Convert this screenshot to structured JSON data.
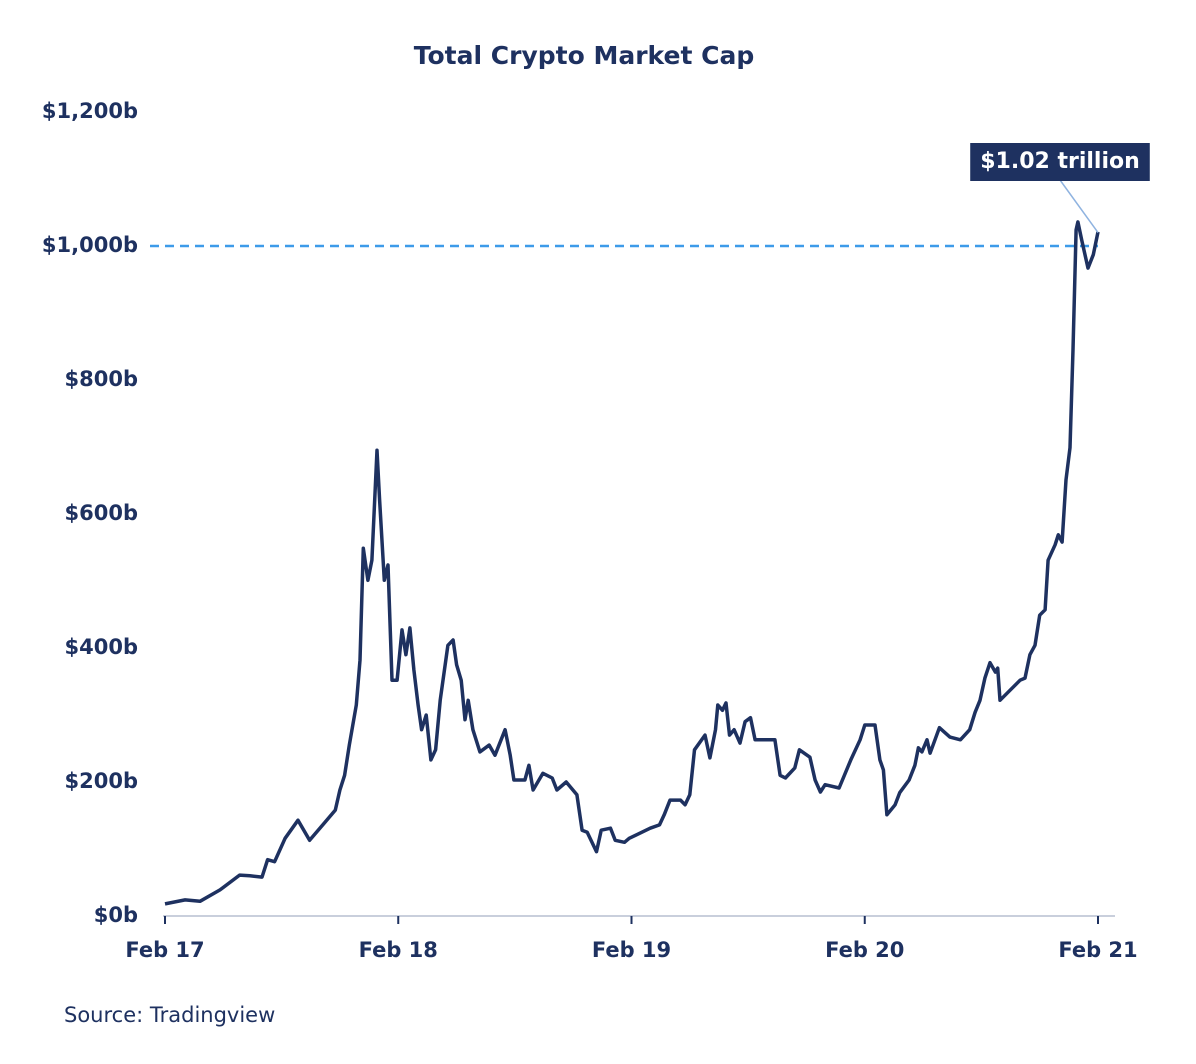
{
  "chart_data": {
    "type": "line",
    "title": "Total Crypto Market Cap",
    "source": "Source: Tradingview",
    "x": [
      2017.0,
      2017.086,
      2017.15,
      2017.236,
      2017.32,
      2017.364,
      2017.416,
      2017.44,
      2017.47,
      2017.515,
      2017.57,
      2017.62,
      2017.686,
      2017.73,
      2017.75,
      2017.77,
      2017.79,
      2017.82,
      2017.836,
      2017.85,
      2017.87,
      2017.887,
      2017.909,
      2017.92,
      2017.94,
      2017.956,
      2017.973,
      2017.995,
      2018.016,
      2018.033,
      2018.05,
      2018.067,
      2018.085,
      2018.1,
      2018.12,
      2018.14,
      2018.16,
      2018.18,
      2018.213,
      2018.235,
      2018.25,
      2018.27,
      2018.286,
      2018.3,
      2018.32,
      2018.35,
      2018.39,
      2018.415,
      2018.458,
      2018.48,
      2018.496,
      2018.543,
      2018.56,
      2018.578,
      2018.62,
      2018.66,
      2018.68,
      2018.72,
      2018.766,
      2018.788,
      2018.81,
      2018.85,
      2018.87,
      2018.91,
      2018.93,
      2018.97,
      2018.99,
      2019.08,
      2019.12,
      2019.14,
      2019.165,
      2019.21,
      2019.23,
      2019.25,
      2019.27,
      2019.315,
      2019.336,
      2019.36,
      2019.37,
      2019.39,
      2019.405,
      2019.42,
      2019.44,
      2019.465,
      2019.487,
      2019.51,
      2019.53,
      2019.57,
      2019.615,
      2019.637,
      2019.66,
      2019.7,
      2019.72,
      2019.765,
      2019.787,
      2019.81,
      2019.83,
      2019.89,
      2019.94,
      2019.98,
      2020.0,
      2020.044,
      2020.065,
      2020.08,
      2020.095,
      2020.13,
      2020.15,
      2020.19,
      2020.215,
      2020.23,
      2020.245,
      2020.267,
      2020.28,
      2020.32,
      2020.365,
      2020.41,
      2020.45,
      2020.473,
      2020.494,
      2020.515,
      2020.537,
      2020.56,
      2020.57,
      2020.58,
      2020.623,
      2020.666,
      2020.687,
      2020.708,
      2020.73,
      2020.75,
      2020.773,
      2020.786,
      2020.816,
      2020.83,
      2020.846,
      2020.863,
      2020.88,
      2020.893,
      2020.906,
      2020.914,
      2020.93,
      2020.957,
      2020.98,
      2021.0
    ],
    "series": [
      {
        "name": "Total Crypto Market Cap",
        "color": "#1e3160",
        "values": [
          18,
          24,
          22,
          39,
          61,
          60,
          58,
          84,
          81,
          116,
          143,
          113,
          140,
          158,
          188,
          210,
          255,
          315,
          382,
          549,
          501,
          531,
          695,
          621,
          501,
          524,
          352,
          352,
          427,
          390,
          430,
          367,
          315,
          278,
          300,
          233,
          248,
          322,
          404,
          412,
          375,
          352,
          293,
          322,
          278,
          245,
          255,
          240,
          278,
          240,
          203,
          203,
          225,
          188,
          213,
          206,
          188,
          200,
          181,
          128,
          125,
          96,
          128,
          131,
          113,
          110,
          116,
          131,
          136,
          151,
          173,
          173,
          166,
          181,
          248,
          270,
          236,
          278,
          315,
          307,
          318,
          270,
          278,
          258,
          290,
          296,
          263,
          263,
          263,
          210,
          206,
          221,
          248,
          237,
          203,
          185,
          196,
          191,
          233,
          263,
          285,
          285,
          233,
          218,
          151,
          166,
          184,
          203,
          225,
          251,
          245,
          263,
          243,
          281,
          267,
          263,
          278,
          304,
          322,
          355,
          378,
          364,
          370,
          322,
          337,
          352,
          355,
          390,
          404,
          449,
          457,
          531,
          554,
          569,
          558,
          651,
          699,
          845,
          1024,
          1036,
          1009,
          967,
          987,
          1021
        ]
      }
    ],
    "xlim": [
      2017,
      2021
    ],
    "xticks": [
      {
        "value": 2017,
        "label": "Feb 17"
      },
      {
        "value": 2018,
        "label": "Feb 18"
      },
      {
        "value": 2019,
        "label": "Feb 19"
      },
      {
        "value": 2020,
        "label": "Feb 20"
      },
      {
        "value": 2021,
        "label": "Feb 21"
      }
    ],
    "ylim": [
      0,
      1200
    ],
    "yticks": [
      {
        "value": 0,
        "label": "$0b"
      },
      {
        "value": 200,
        "label": "$200b"
      },
      {
        "value": 400,
        "label": "$400b"
      },
      {
        "value": 600,
        "label": "$600b"
      },
      {
        "value": 800,
        "label": "$800b"
      },
      {
        "value": 1000,
        "label": "$1,000b"
      },
      {
        "value": 1200,
        "label": "$1,200b"
      }
    ],
    "reference_line": {
      "value": 1000,
      "color": "#3d9be9"
    },
    "annotation": {
      "label": "$1.02 trillion",
      "value": 1020
    }
  }
}
